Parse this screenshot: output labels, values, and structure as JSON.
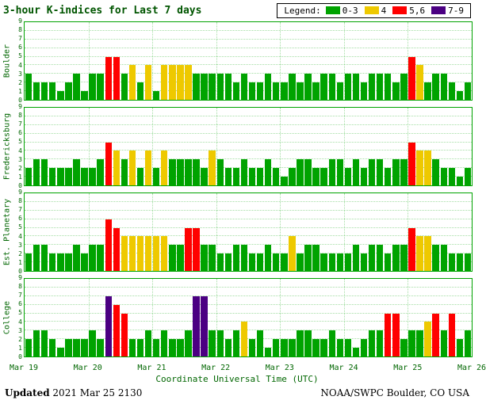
{
  "header": {
    "legend_label": "Legend:"
  },
  "footer": {
    "updated_label": "Updated",
    "updated_value": "2021 Mar 25 2130",
    "credit": "NOAA/SWPC Boulder, CO USA"
  },
  "chart_data": {
    "type": "bar",
    "title": "3-hour K-indices for Last 7 days",
    "xlabel": "Coordinate Universal Time (UTC)",
    "ylim": [
      0,
      9
    ],
    "y_ticks": [
      0,
      1,
      2,
      3,
      4,
      5,
      6,
      7,
      8,
      9
    ],
    "grid": true,
    "bars_per_day": 8,
    "x_tick_labels": [
      "Mar 19",
      "Mar 20",
      "Mar 21",
      "Mar 22",
      "Mar 23",
      "Mar 24",
      "Mar 25",
      "Mar 26"
    ],
    "color_rules": [
      {
        "label": "0-3",
        "range": [
          0,
          3
        ],
        "color": "#00a300"
      },
      {
        "label": "4",
        "range": [
          4,
          4
        ],
        "color": "#eec900"
      },
      {
        "label": "5,6",
        "range": [
          5,
          6
        ],
        "color": "#ff0000"
      },
      {
        "label": "7-9",
        "range": [
          7,
          9
        ],
        "color": "#4b0082"
      }
    ],
    "series": [
      {
        "name": "Boulder",
        "values": [
          3,
          2,
          2,
          2,
          1,
          2,
          3,
          1,
          3,
          3,
          5,
          5,
          3,
          4,
          2,
          4,
          1,
          4,
          4,
          4,
          4,
          3,
          3,
          3,
          3,
          3,
          2,
          3,
          2,
          2,
          3,
          2,
          2,
          3,
          2,
          3,
          2,
          3,
          3,
          2,
          3,
          3,
          2,
          3,
          3,
          3,
          2,
          3,
          5,
          4,
          2,
          3,
          3,
          2,
          1,
          2
        ]
      },
      {
        "name": "Fredericksburg",
        "values": [
          2,
          3,
          3,
          2,
          2,
          2,
          3,
          2,
          2,
          3,
          5,
          4,
          3,
          4,
          2,
          4,
          2,
          4,
          3,
          3,
          3,
          3,
          2,
          4,
          3,
          2,
          2,
          3,
          2,
          2,
          3,
          2,
          1,
          2,
          3,
          3,
          2,
          2,
          3,
          3,
          2,
          3,
          2,
          3,
          3,
          2,
          3,
          3,
          5,
          4,
          4,
          3,
          2,
          2,
          1,
          2
        ]
      },
      {
        "name": "Est. Planetary",
        "values": [
          2,
          3,
          3,
          2,
          2,
          2,
          3,
          2,
          3,
          3,
          6,
          5,
          4,
          4,
          4,
          4,
          4,
          4,
          3,
          3,
          5,
          5,
          3,
          3,
          2,
          2,
          3,
          3,
          2,
          2,
          3,
          2,
          2,
          4,
          2,
          3,
          3,
          2,
          2,
          2,
          2,
          3,
          2,
          3,
          3,
          2,
          3,
          3,
          5,
          4,
          4,
          3,
          3,
          2,
          2,
          2
        ]
      },
      {
        "name": "College",
        "values": [
          2,
          3,
          3,
          2,
          1,
          2,
          2,
          2,
          3,
          2,
          7,
          6,
          5,
          2,
          2,
          3,
          2,
          3,
          2,
          2,
          3,
          7,
          7,
          3,
          3,
          2,
          3,
          4,
          2,
          3,
          1,
          2,
          2,
          2,
          3,
          3,
          2,
          2,
          3,
          2,
          2,
          1,
          2,
          3,
          3,
          5,
          5,
          2,
          3,
          3,
          4,
          5,
          3,
          5,
          2,
          3
        ]
      }
    ]
  }
}
